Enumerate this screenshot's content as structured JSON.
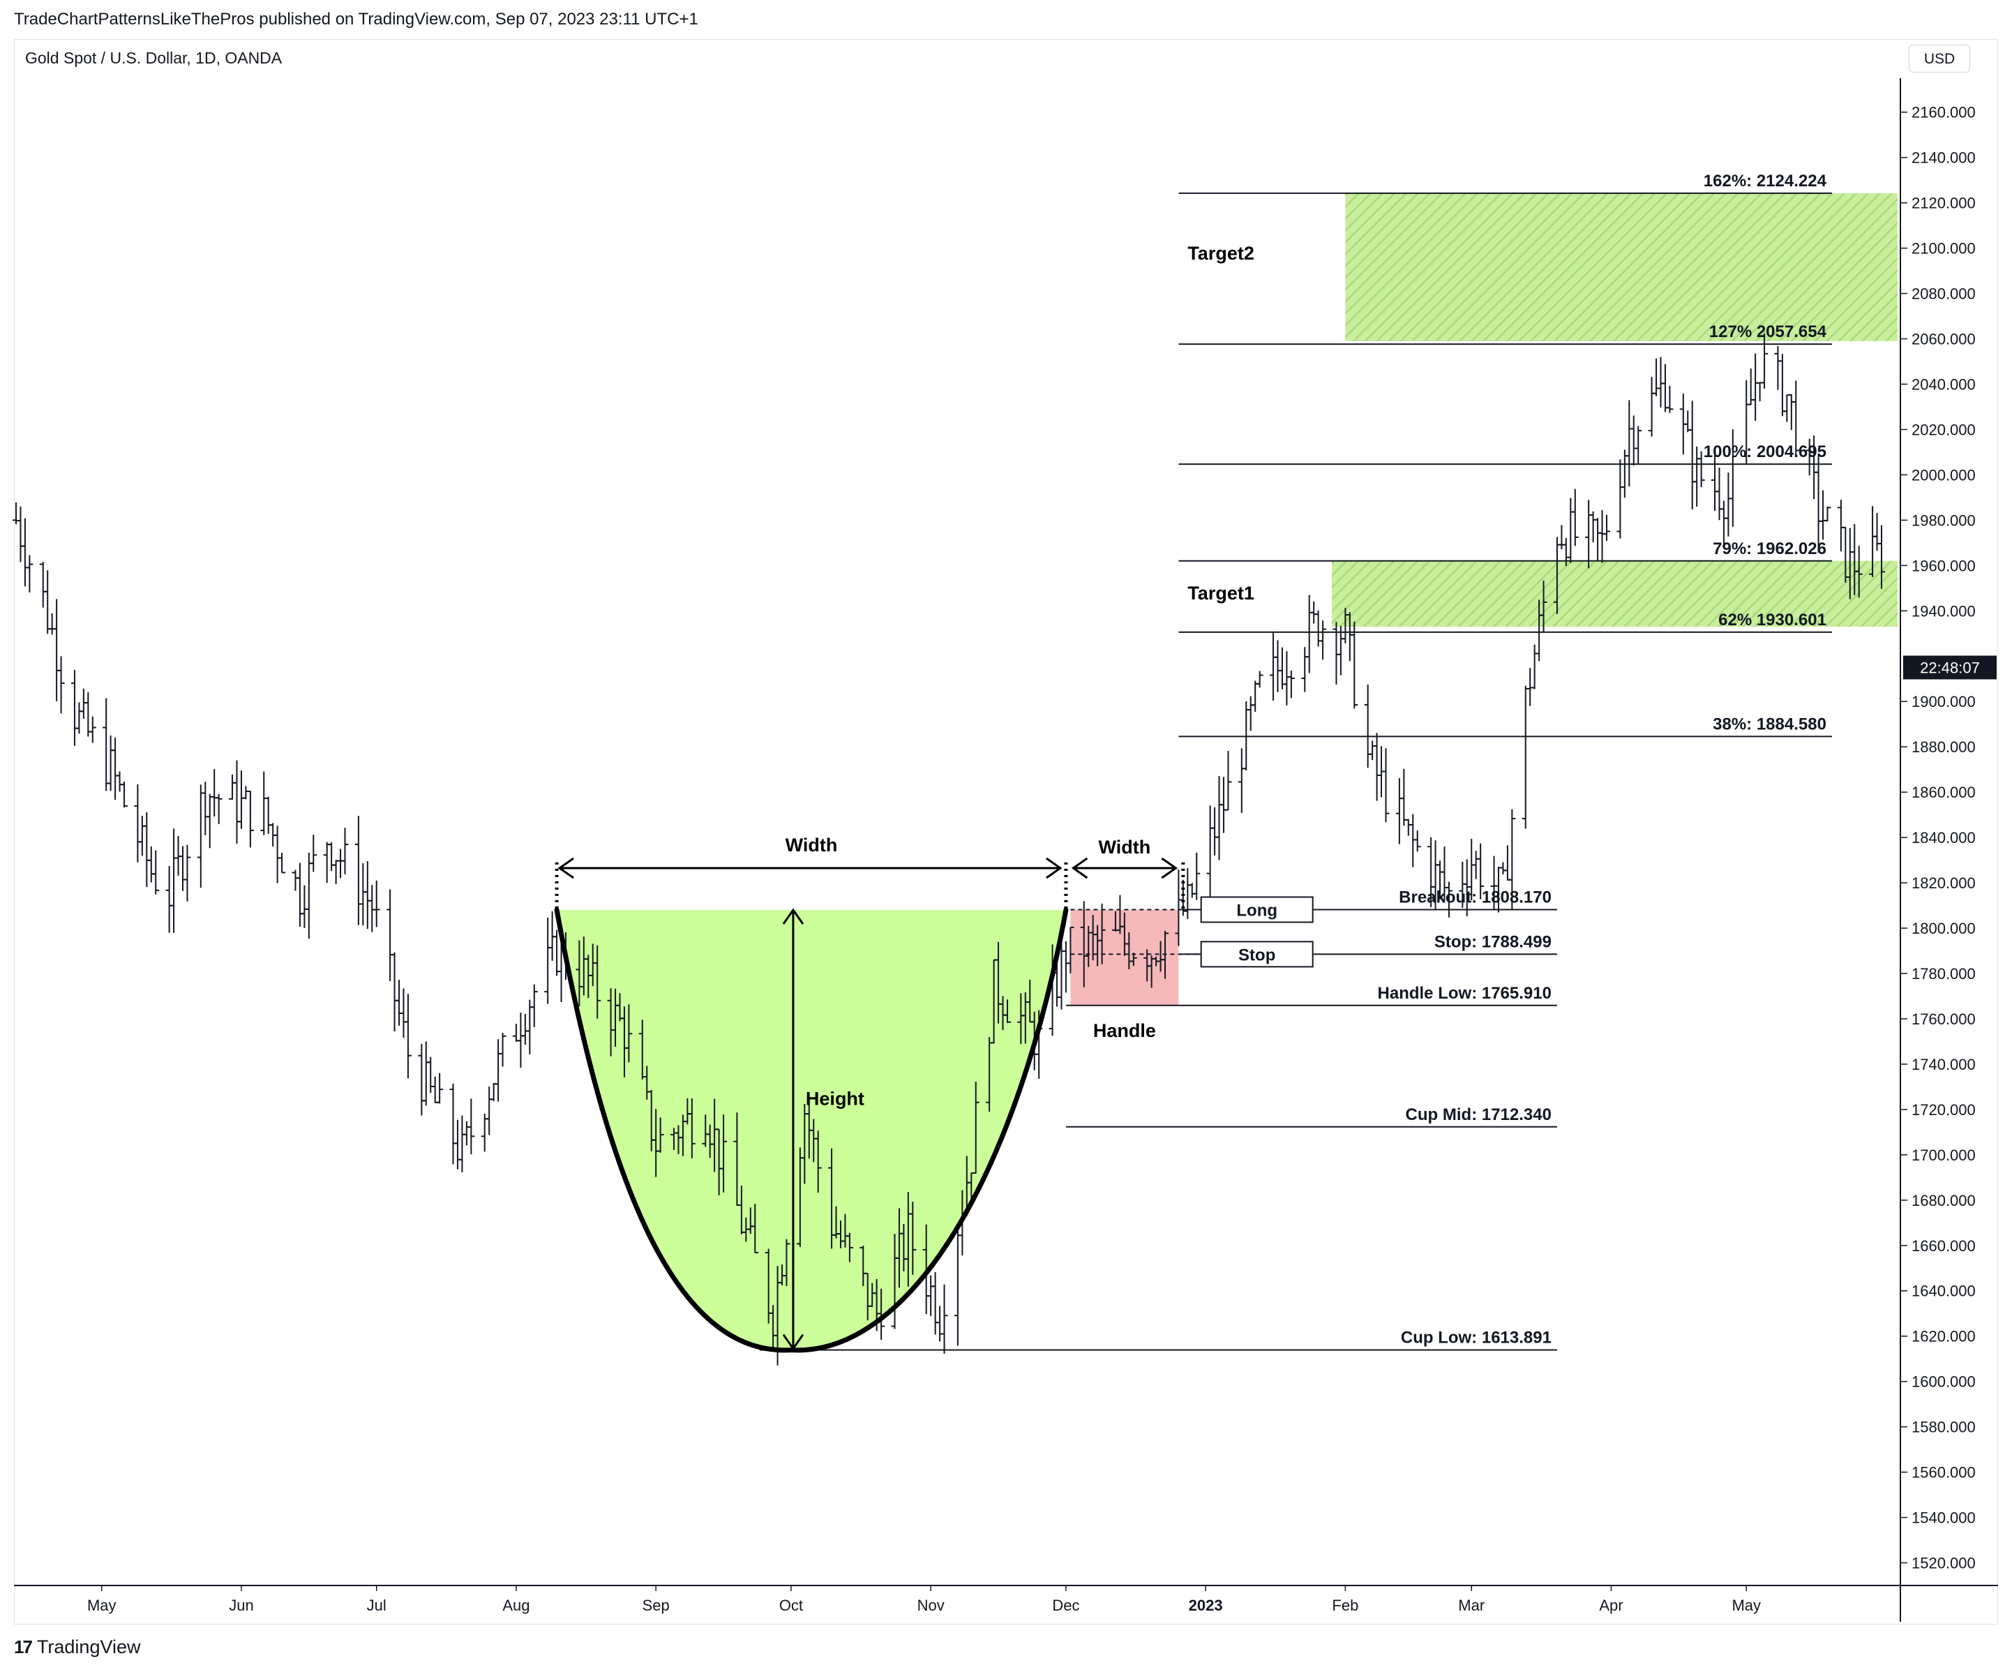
{
  "header": {
    "publisher": "TradeChartPatternsLikeThePros published on TradingView.com, Sep 07, 2023 23:11 UTC+1",
    "symbol": "Gold Spot / U.S. Dollar, 1D, OANDA",
    "currency": "USD",
    "countdown": "22:48:07"
  },
  "footer": {
    "logo_text": "17",
    "brand": "TradingView"
  },
  "colors": {
    "cup_fill": "#ccff99",
    "handle_fill": "#f6b9b9",
    "target_fill": "#b8e986",
    "line": "#131722"
  },
  "chart_data": {
    "type": "ohlc",
    "title": "Gold Spot / U.S. Dollar, 1D, OANDA",
    "ylim": [
      1510,
      2175
    ],
    "y_ticks": [
      1520,
      1540,
      1560,
      1580,
      1600,
      1620,
      1640,
      1660,
      1680,
      1700,
      1720,
      1740,
      1760,
      1780,
      1800,
      1820,
      1840,
      1860,
      1880,
      1900,
      1940,
      1960,
      1980,
      2000,
      2020,
      2040,
      2060,
      2080,
      2100,
      2120,
      2140,
      2160
    ],
    "y_tick_labels": [
      "1520.000",
      "1540.000",
      "1560.000",
      "1580.000",
      "1600.000",
      "1620.000",
      "1640.000",
      "1660.000",
      "1680.000",
      "1700.000",
      "1720.000",
      "1740.000",
      "1760.000",
      "1780.000",
      "1800.000",
      "1820.000",
      "1840.000",
      "1860.000",
      "1880.000",
      "1900.000",
      "1940.000",
      "1960.000",
      "1980.000",
      "2000.000",
      "2020.000",
      "2040.000",
      "2060.000",
      "2080.000",
      "2100.000",
      "2120.000",
      "2140.000",
      "2160.000"
    ],
    "x_range": [
      "2022-04-12",
      "2023-05-31"
    ],
    "x_ticks": [
      {
        "date": "2022-05-01",
        "label": "May"
      },
      {
        "date": "2022-06-01",
        "label": "Jun"
      },
      {
        "date": "2022-07-01",
        "label": "Jul"
      },
      {
        "date": "2022-08-01",
        "label": "Aug"
      },
      {
        "date": "2022-09-01",
        "label": "Sep"
      },
      {
        "date": "2022-10-01",
        "label": "Oct"
      },
      {
        "date": "2022-11-01",
        "label": "Nov"
      },
      {
        "date": "2022-12-01",
        "label": "Dec"
      },
      {
        "date": "2023-01-01",
        "label": "2023"
      },
      {
        "date": "2023-02-01",
        "label": "Feb"
      },
      {
        "date": "2023-03-01",
        "label": "Mar"
      },
      {
        "date": "2023-04-01",
        "label": "Apr"
      },
      {
        "date": "2023-05-01",
        "label": "May"
      }
    ],
    "price_path": [
      [
        "2022-04-12",
        1980
      ],
      [
        "2022-04-18",
        1945
      ],
      [
        "2022-04-25",
        1895
      ],
      [
        "2022-05-03",
        1870
      ],
      [
        "2022-05-12",
        1825
      ],
      [
        "2022-05-16",
        1815
      ],
      [
        "2022-05-24",
        1860
      ],
      [
        "2022-06-06",
        1850
      ],
      [
        "2022-06-14",
        1815
      ],
      [
        "2022-06-20",
        1840
      ],
      [
        "2022-06-30",
        1810
      ],
      [
        "2022-07-08",
        1745
      ],
      [
        "2022-07-20",
        1700
      ],
      [
        "2022-07-27",
        1735
      ],
      [
        "2022-08-03",
        1765
      ],
      [
        "2022-08-10",
        1790
      ],
      [
        "2022-08-16",
        1780
      ],
      [
        "2022-08-25",
        1755
      ],
      [
        "2022-09-01",
        1705
      ],
      [
        "2022-09-12",
        1720
      ],
      [
        "2022-09-20",
        1670
      ],
      [
        "2022-09-27",
        1630
      ],
      [
        "2022-10-04",
        1720
      ],
      [
        "2022-10-10",
        1670
      ],
      [
        "2022-10-20",
        1630
      ],
      [
        "2022-10-27",
        1665
      ],
      [
        "2022-11-03",
        1630
      ],
      [
        "2022-11-10",
        1700
      ],
      [
        "2022-11-15",
        1775
      ],
      [
        "2022-11-25",
        1750
      ],
      [
        "2022-12-01",
        1790
      ],
      [
        "2022-12-12",
        1795
      ],
      [
        "2022-12-20",
        1790
      ],
      [
        "2022-12-28",
        1810
      ],
      [
        "2023-01-06",
        1860
      ],
      [
        "2023-01-13",
        1905
      ],
      [
        "2023-01-26",
        1935
      ],
      [
        "2023-02-01",
        1930
      ],
      [
        "2023-02-06",
        1875
      ],
      [
        "2023-02-15",
        1840
      ],
      [
        "2023-02-24",
        1815
      ],
      [
        "2023-03-01",
        1830
      ],
      [
        "2023-03-08",
        1815
      ],
      [
        "2023-03-13",
        1900
      ],
      [
        "2023-03-20",
        1975
      ],
      [
        "2023-03-30",
        1970
      ],
      [
        "2023-04-05",
        2020
      ],
      [
        "2023-04-13",
        2040
      ],
      [
        "2023-04-20",
        2000
      ],
      [
        "2023-04-27",
        1990
      ],
      [
        "2023-05-04",
        2050
      ],
      [
        "2023-05-10",
        2035
      ],
      [
        "2023-05-17",
        1985
      ],
      [
        "2023-05-24",
        1960
      ],
      [
        "2023-05-31",
        1965
      ]
    ],
    "annotations": {
      "cup": {
        "left": [
          "2022-08-10",
          1808
        ],
        "bottom": [
          "2022-10-01",
          1613.891
        ],
        "right": [
          "2022-12-01",
          1808
        ]
      },
      "handle": {
        "start": "2022-12-02",
        "end": "2022-12-26",
        "top": 1808.17,
        "bottom": 1765.91,
        "label": "Handle"
      },
      "cup_width_label": "Width",
      "handle_width_label": "Width",
      "height_label": "Height",
      "levels": [
        {
          "label": "Breakout: 1808.170",
          "value": 1808.17,
          "from": "2022-12-26",
          "to": "2023-03-20"
        },
        {
          "label": "Stop: 1788.499",
          "value": 1788.499,
          "from": "2022-12-26",
          "to": "2023-03-20"
        },
        {
          "label": "Handle Low: 1765.910",
          "value": 1765.91,
          "from": "2022-12-01",
          "to": "2023-03-20"
        },
        {
          "label": "Cup Mid: 1712.340",
          "value": 1712.34,
          "from": "2022-12-01",
          "to": "2023-03-20"
        },
        {
          "label": "Cup Low: 1613.891",
          "value": 1613.891,
          "from": "2022-09-24",
          "to": "2023-03-20"
        },
        {
          "label": "38%: 1884.580",
          "value": 1884.58,
          "from": "2022-12-26",
          "to": "2023-05-20"
        },
        {
          "label": "62% 1930.601",
          "value": 1930.601,
          "from": "2022-12-26",
          "to": "2023-05-20"
        },
        {
          "label": "79%: 1962.026",
          "value": 1962.026,
          "from": "2022-12-26",
          "to": "2023-05-20"
        },
        {
          "label": "100%: 2004.695",
          "value": 2004.695,
          "from": "2022-12-26",
          "to": "2023-05-20"
        },
        {
          "label": "127% 2057.654",
          "value": 2057.654,
          "from": "2022-12-26",
          "to": "2023-05-20"
        },
        {
          "label": "162%: 2124.224",
          "value": 2124.224,
          "from": "2022-12-26",
          "to": "2023-05-20"
        }
      ],
      "boxes": [
        {
          "label": "Long",
          "value": 1808.17
        },
        {
          "label": "Stop",
          "value": 1788.499
        }
      ],
      "targets": [
        {
          "label": "Target1",
          "from_date": "2023-01-29",
          "bottom": 1933,
          "top": 1962.026
        },
        {
          "label": "Target2",
          "from_date": "2023-02-01",
          "bottom": 2059,
          "top": 2124.224
        }
      ]
    }
  }
}
